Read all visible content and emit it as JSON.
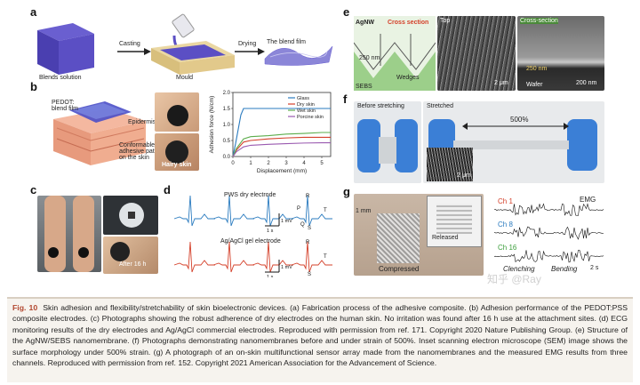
{
  "panels": {
    "a": {
      "label": "a",
      "casting": "Casting",
      "drying": "Drying",
      "blends": "Blends solution",
      "mould": "Mould",
      "blend_film": "The blend film"
    },
    "b": {
      "label": "b",
      "pedot": "PEDOT:\nblend film",
      "epidermis": "Epidermis",
      "conformable": "Conformable/\nadhesive patch\non the skin",
      "hairy": "Hairy skin"
    },
    "c": {
      "label": "c",
      "after": "After 16 h"
    },
    "d": {
      "label": "d",
      "pws": "PWS dry electrode",
      "agcl": "Ag/AgCl gel electrode",
      "t1": "1 s",
      "t2": "1 s",
      "v1": "1 mV",
      "v2": "1 mV",
      "P": "P",
      "R": "R",
      "Q": "Q",
      "S": "S",
      "T": "T"
    },
    "e": {
      "label": "e",
      "agnw": "AgNW",
      "cross": "Cross section",
      "top": "Top",
      "cross2": "Cross-section",
      "sebs": "SEBS",
      "wedges": "Wedges",
      "nm250": "250 nm",
      "nm250b": "250 nm",
      "um2": "2 μm",
      "nm200": "200 nm",
      "wafer": "Wafer"
    },
    "f": {
      "label": "f",
      "before": "Before stretching",
      "stretched": "Stretched",
      "pct": "500%",
      "um2": "2 μm"
    },
    "g": {
      "label": "g",
      "mm": "1 mm",
      "released": "Released",
      "compressed": "Compressed",
      "ch1": "Ch 1",
      "ch8": "Ch 8",
      "ch16": "Ch 16",
      "emg": "EMG",
      "clenching": "Clenching",
      "bending": "Bending",
      "scale": "2 s",
      "scale2": "0.5"
    }
  },
  "chart_data": {
    "type": "line",
    "xlabel": "Displacement (mm)",
    "ylabel": "Adhesion force (N/cm)",
    "xlim": [
      0,
      5.5
    ],
    "ylim": [
      0,
      2
    ],
    "xticks": [
      "0",
      "1",
      "2",
      "3",
      "4",
      "5"
    ],
    "yticks": [
      "0.0",
      "0.5",
      "1.0",
      "1.5",
      "2.0"
    ],
    "legend": "top-right",
    "series": [
      {
        "name": "Glass",
        "color": "#2a7bbf",
        "x": [
          0,
          0.15,
          0.45,
          0.6,
          1,
          2,
          3,
          4,
          5,
          5.5
        ],
        "y": [
          0,
          0.4,
          1.3,
          1.5,
          1.5,
          1.5,
          1.5,
          1.5,
          1.5,
          1.5
        ]
      },
      {
        "name": "Dry skin",
        "color": "#d4402a",
        "x": [
          0,
          0.2,
          0.6,
          1,
          2,
          3,
          4,
          5,
          5.5
        ],
        "y": [
          0,
          0.2,
          0.45,
          0.5,
          0.55,
          0.58,
          0.6,
          0.6,
          0.6
        ]
      },
      {
        "name": "Wet skin",
        "color": "#5cad4c",
        "x": [
          0,
          0.2,
          0.6,
          1,
          2,
          3,
          4,
          5,
          5.5
        ],
        "y": [
          0,
          0.25,
          0.55,
          0.62,
          0.65,
          0.7,
          0.72,
          0.75,
          0.75
        ]
      },
      {
        "name": "Porcine skin",
        "color": "#9a5ab0",
        "x": [
          0,
          0.2,
          0.6,
          1,
          2,
          3,
          4,
          5,
          5.5
        ],
        "y": [
          0,
          0.15,
          0.3,
          0.35,
          0.38,
          0.4,
          0.42,
          0.43,
          0.43
        ]
      }
    ]
  },
  "caption": {
    "label": "Fig. 10",
    "text": "Skin adhesion and flexibility/stretchability of skin bioelectronic devices. (a) Fabrication process of the adhesive composite. (b) Adhesion performance of the PEDOT:PSS composite electrodes. (c) Photographs showing the robust adherence of dry electrodes on the human skin. No irritation was found after 16 h use at the attachment sites. (d) ECG monitoring results of the dry electrodes and Ag/AgCl commercial electrodes. Reproduced with permission from ref. 171. Copyright 2020 Nature Publishing Group. (e) Structure of the AgNW/SEBS nanomembrane. (f) Photographs demonstrating nanomembranes before and under strain of 500%. Inset scanning electron microscope (SEM) image shows the surface morphology under 500% strain. (g) A photograph of an on-skin multifunctional sensor array made from the nanomembranes and the measured EMG results from three channels. Reproduced with permission from ref. 152. Copyright 2021 American Association for the Advancement of Science."
  },
  "watermark": "知乎 @Ray",
  "colors": {
    "caption_label": "#b2462e",
    "ecg_blue": "#2a7bbf",
    "ecg_red": "#d4402a",
    "emg_red": "#d4402a",
    "emg_green": "#3c9e3c"
  }
}
